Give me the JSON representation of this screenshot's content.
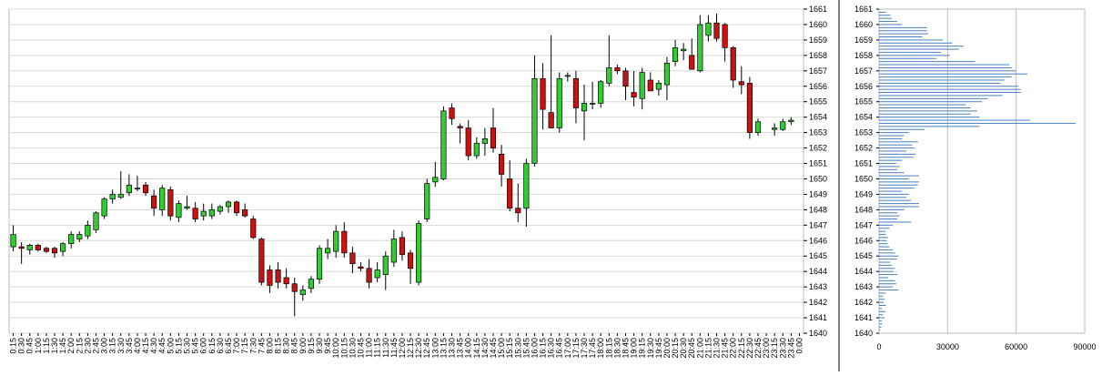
{
  "chart_data": [
    {
      "type": "candlestick",
      "title": "",
      "xlabel": "",
      "ylabel": "",
      "ylim": [
        1640,
        1661
      ],
      "y_ticks": [
        "1640",
        "1641",
        "1642",
        "1643",
        "1644",
        "1645",
        "1646",
        "1647",
        "1648",
        "1649",
        "1650",
        "1651",
        "1652",
        "1653",
        "1654",
        "1655",
        "1656",
        "1657",
        "1658",
        "1659",
        "1660",
        "1661"
      ],
      "x_ticks": [
        "0:15",
        "0:30",
        "0:45",
        "1:00",
        "1:15",
        "1:30",
        "1:45",
        "2:00",
        "2:15",
        "2:30",
        "2:45",
        "3:00",
        "3:15",
        "3:30",
        "3:45",
        "4:00",
        "4:15",
        "4:30",
        "4:45",
        "5:00",
        "5:15",
        "5:30",
        "5:45",
        "6:00",
        "6:15",
        "6:30",
        "6:45",
        "7:00",
        "7:15",
        "7:30",
        "7:45",
        "8:00",
        "8:15",
        "8:30",
        "8:45",
        "9:00",
        "9:15",
        "9:30",
        "9:45",
        "10:00",
        "10:15",
        "10:30",
        "10:45",
        "11:00",
        "11:15",
        "11:30",
        "11:45",
        "12:00",
        "12:15",
        "12:30",
        "12:45",
        "13:00",
        "13:15",
        "13:30",
        "13:45",
        "14:00",
        "14:15",
        "14:30",
        "14:45",
        "15:00",
        "15:15",
        "15:30",
        "15:45",
        "16:00",
        "16:15",
        "16:30",
        "16:45",
        "17:00",
        "17:15",
        "17:30",
        "17:45",
        "18:00",
        "18:15",
        "18:30",
        "18:45",
        "19:00",
        "19:15",
        "19:30",
        "19:45",
        "20:00",
        "20:15",
        "20:30",
        "20:45",
        "21:00",
        "21:15",
        "21:30",
        "21:45",
        "22:00",
        "22:15",
        "22:30",
        "22:45",
        "23:00",
        "23:15",
        "23:30",
        "23:45",
        "0:00"
      ],
      "grid": true,
      "colors": {
        "up": "#33cc33",
        "down": "#cc1111",
        "wick": "#000000",
        "volume": "#4a7fc1",
        "grid": "#d9d9d9"
      },
      "candles": [
        {
          "o": 1645.6,
          "h": 1647.0,
          "l": 1645.3,
          "c": 1646.4
        },
        {
          "o": 1645.6,
          "h": 1645.9,
          "l": 1644.5,
          "c": 1645.5
        },
        {
          "o": 1645.4,
          "h": 1645.8,
          "l": 1645.1,
          "c": 1645.7
        },
        {
          "o": 1645.7,
          "h": 1645.8,
          "l": 1645.3,
          "c": 1645.4
        },
        {
          "o": 1645.5,
          "h": 1645.6,
          "l": 1645.2,
          "c": 1645.3
        },
        {
          "o": 1645.5,
          "h": 1645.6,
          "l": 1644.9,
          "c": 1645.2
        },
        {
          "o": 1645.3,
          "h": 1645.9,
          "l": 1645.0,
          "c": 1645.8
        },
        {
          "o": 1645.8,
          "h": 1646.6,
          "l": 1645.5,
          "c": 1646.4
        },
        {
          "o": 1646.1,
          "h": 1646.6,
          "l": 1645.9,
          "c": 1646.4
        },
        {
          "o": 1646.3,
          "h": 1647.3,
          "l": 1646.1,
          "c": 1647.0
        },
        {
          "o": 1646.7,
          "h": 1647.9,
          "l": 1646.5,
          "c": 1647.8
        },
        {
          "o": 1647.6,
          "h": 1648.8,
          "l": 1647.4,
          "c": 1648.7
        },
        {
          "o": 1648.7,
          "h": 1649.3,
          "l": 1648.4,
          "c": 1649.0
        },
        {
          "o": 1648.8,
          "h": 1650.5,
          "l": 1648.7,
          "c": 1649.0
        },
        {
          "o": 1649.1,
          "h": 1650.3,
          "l": 1648.9,
          "c": 1649.6
        },
        {
          "o": 1649.4,
          "h": 1650.2,
          "l": 1649.2,
          "c": 1649.4
        },
        {
          "o": 1649.6,
          "h": 1649.8,
          "l": 1648.9,
          "c": 1649.1
        },
        {
          "o": 1648.9,
          "h": 1649.3,
          "l": 1647.6,
          "c": 1648.1
        },
        {
          "o": 1648.0,
          "h": 1649.6,
          "l": 1647.6,
          "c": 1649.4
        },
        {
          "o": 1649.3,
          "h": 1649.5,
          "l": 1647.3,
          "c": 1647.6
        },
        {
          "o": 1647.5,
          "h": 1648.6,
          "l": 1647.2,
          "c": 1648.4
        },
        {
          "o": 1648.1,
          "h": 1648.9,
          "l": 1648.0,
          "c": 1648.2
        },
        {
          "o": 1648.1,
          "h": 1648.5,
          "l": 1647.2,
          "c": 1647.4
        },
        {
          "o": 1647.6,
          "h": 1648.4,
          "l": 1647.3,
          "c": 1647.9
        },
        {
          "o": 1647.6,
          "h": 1648.4,
          "l": 1647.4,
          "c": 1648.0
        },
        {
          "o": 1647.9,
          "h": 1648.3,
          "l": 1647.7,
          "c": 1648.2
        },
        {
          "o": 1648.2,
          "h": 1648.6,
          "l": 1647.8,
          "c": 1648.5
        },
        {
          "o": 1648.5,
          "h": 1648.6,
          "l": 1647.6,
          "c": 1647.8
        },
        {
          "o": 1648.0,
          "h": 1648.4,
          "l": 1647.5,
          "c": 1647.6
        },
        {
          "o": 1647.4,
          "h": 1647.6,
          "l": 1646.1,
          "c": 1646.2
        },
        {
          "o": 1646.1,
          "h": 1646.2,
          "l": 1643.1,
          "c": 1643.3
        },
        {
          "o": 1644.1,
          "h": 1644.4,
          "l": 1642.6,
          "c": 1643.1
        },
        {
          "o": 1644.1,
          "h": 1644.6,
          "l": 1642.9,
          "c": 1643.3
        },
        {
          "o": 1643.6,
          "h": 1644.2,
          "l": 1642.9,
          "c": 1643.2
        },
        {
          "o": 1643.2,
          "h": 1643.6,
          "l": 1641.1,
          "c": 1642.7
        },
        {
          "o": 1642.5,
          "h": 1643.1,
          "l": 1642.1,
          "c": 1642.8
        },
        {
          "o": 1642.9,
          "h": 1643.7,
          "l": 1642.6,
          "c": 1643.5
        },
        {
          "o": 1643.5,
          "h": 1645.7,
          "l": 1643.2,
          "c": 1645.5
        },
        {
          "o": 1645.2,
          "h": 1646.1,
          "l": 1644.8,
          "c": 1645.5
        },
        {
          "o": 1645.3,
          "h": 1647.0,
          "l": 1644.9,
          "c": 1646.6
        },
        {
          "o": 1646.6,
          "h": 1647.2,
          "l": 1644.9,
          "c": 1645.2
        },
        {
          "o": 1645.2,
          "h": 1645.6,
          "l": 1643.9,
          "c": 1644.5
        },
        {
          "o": 1644.3,
          "h": 1644.6,
          "l": 1644.0,
          "c": 1644.2
        },
        {
          "o": 1644.2,
          "h": 1644.8,
          "l": 1642.9,
          "c": 1643.3
        },
        {
          "o": 1643.6,
          "h": 1644.6,
          "l": 1643.3,
          "c": 1644.1
        },
        {
          "o": 1643.8,
          "h": 1645.3,
          "l": 1642.8,
          "c": 1645.0
        },
        {
          "o": 1644.6,
          "h": 1646.7,
          "l": 1644.3,
          "c": 1646.1
        },
        {
          "o": 1646.2,
          "h": 1646.6,
          "l": 1644.7,
          "c": 1645.1
        },
        {
          "o": 1645.2,
          "h": 1645.4,
          "l": 1643.2,
          "c": 1644.2
        },
        {
          "o": 1643.3,
          "h": 1647.3,
          "l": 1643.1,
          "c": 1647.1
        },
        {
          "o": 1647.4,
          "h": 1650.0,
          "l": 1647.2,
          "c": 1649.7
        },
        {
          "o": 1649.8,
          "h": 1651.1,
          "l": 1649.5,
          "c": 1650.1
        },
        {
          "o": 1650.0,
          "h": 1654.7,
          "l": 1649.9,
          "c": 1654.4
        },
        {
          "o": 1654.6,
          "h": 1654.9,
          "l": 1653.5,
          "c": 1653.9
        },
        {
          "o": 1653.4,
          "h": 1653.6,
          "l": 1652.3,
          "c": 1653.3
        },
        {
          "o": 1653.3,
          "h": 1653.8,
          "l": 1651.2,
          "c": 1651.5
        },
        {
          "o": 1651.5,
          "h": 1652.7,
          "l": 1651.3,
          "c": 1652.3
        },
        {
          "o": 1652.3,
          "h": 1653.3,
          "l": 1651.5,
          "c": 1652.6
        },
        {
          "o": 1653.3,
          "h": 1654.6,
          "l": 1651.7,
          "c": 1652.0
        },
        {
          "o": 1651.6,
          "h": 1652.2,
          "l": 1649.5,
          "c": 1650.3
        },
        {
          "o": 1650.0,
          "h": 1651.2,
          "l": 1647.9,
          "c": 1648.1
        },
        {
          "o": 1648.1,
          "h": 1649.7,
          "l": 1647.2,
          "c": 1647.8
        },
        {
          "o": 1648.1,
          "h": 1651.3,
          "l": 1646.9,
          "c": 1651.0
        },
        {
          "o": 1651.0,
          "h": 1658.0,
          "l": 1650.8,
          "c": 1656.5
        },
        {
          "o": 1656.5,
          "h": 1657.5,
          "l": 1653.2,
          "c": 1654.5
        },
        {
          "o": 1654.3,
          "h": 1659.3,
          "l": 1653.3,
          "c": 1653.3
        },
        {
          "o": 1653.3,
          "h": 1656.9,
          "l": 1653.0,
          "c": 1656.5
        },
        {
          "o": 1656.7,
          "h": 1656.9,
          "l": 1656.3,
          "c": 1656.7
        },
        {
          "o": 1656.5,
          "h": 1657.0,
          "l": 1653.6,
          "c": 1654.6
        },
        {
          "o": 1654.4,
          "h": 1656.1,
          "l": 1652.5,
          "c": 1654.9
        },
        {
          "o": 1654.9,
          "h": 1656.3,
          "l": 1654.5,
          "c": 1654.9
        },
        {
          "o": 1654.9,
          "h": 1656.4,
          "l": 1654.6,
          "c": 1656.3
        },
        {
          "o": 1656.2,
          "h": 1659.3,
          "l": 1656.0,
          "c": 1657.2
        },
        {
          "o": 1657.2,
          "h": 1657.4,
          "l": 1656.8,
          "c": 1657.0
        },
        {
          "o": 1657.0,
          "h": 1657.2,
          "l": 1655.1,
          "c": 1656.0
        },
        {
          "o": 1655.6,
          "h": 1657.0,
          "l": 1654.7,
          "c": 1655.3
        },
        {
          "o": 1655.2,
          "h": 1657.2,
          "l": 1654.5,
          "c": 1656.9
        },
        {
          "o": 1656.4,
          "h": 1656.9,
          "l": 1655.7,
          "c": 1655.7
        },
        {
          "o": 1655.8,
          "h": 1656.4,
          "l": 1655.4,
          "c": 1656.2
        },
        {
          "o": 1656.1,
          "h": 1657.9,
          "l": 1655.1,
          "c": 1657.5
        },
        {
          "o": 1657.6,
          "h": 1659.0,
          "l": 1657.3,
          "c": 1658.5
        },
        {
          "o": 1658.3,
          "h": 1658.8,
          "l": 1657.7,
          "c": 1658.4
        },
        {
          "o": 1658.0,
          "h": 1659.1,
          "l": 1657.1,
          "c": 1657.1
        },
        {
          "o": 1657.0,
          "h": 1660.6,
          "l": 1656.9,
          "c": 1660.0
        },
        {
          "o": 1659.3,
          "h": 1660.6,
          "l": 1658.9,
          "c": 1660.1
        },
        {
          "o": 1660.1,
          "h": 1660.7,
          "l": 1658.9,
          "c": 1659.1
        },
        {
          "o": 1660.0,
          "h": 1660.1,
          "l": 1657.6,
          "c": 1658.5
        },
        {
          "o": 1658.5,
          "h": 1658.6,
          "l": 1655.9,
          "c": 1656.4
        },
        {
          "o": 1656.3,
          "h": 1657.3,
          "l": 1655.5,
          "c": 1656.1
        },
        {
          "o": 1656.2,
          "h": 1656.6,
          "l": 1652.6,
          "c": 1653.0
        },
        {
          "o": 1653.0,
          "h": 1653.9,
          "l": 1652.8,
          "c": 1653.7
        },
        null,
        {
          "o": 1653.2,
          "h": 1653.6,
          "l": 1652.8,
          "c": 1653.3
        },
        {
          "o": 1653.2,
          "h": 1653.9,
          "l": 1653.1,
          "c": 1653.7
        },
        {
          "o": 1653.7,
          "h": 1654.0,
          "l": 1653.5,
          "c": 1653.8
        }
      ],
      "volume": [
        0,
        0,
        0,
        0,
        0,
        0,
        0,
        0,
        0,
        0,
        0,
        0,
        0,
        0,
        0,
        0,
        0,
        0,
        0,
        0,
        0,
        0,
        0,
        0,
        0,
        0,
        0,
        0,
        0,
        0,
        0,
        0,
        0,
        0,
        0,
        0,
        0,
        0,
        0,
        0,
        0,
        0,
        0,
        0,
        0,
        0,
        0,
        0,
        0,
        0,
        0,
        0,
        0,
        0,
        0,
        0,
        0,
        0,
        0,
        0,
        0,
        0,
        0,
        0,
        0,
        0,
        0,
        0,
        0,
        0,
        0,
        0,
        0,
        0,
        0,
        0,
        0,
        0,
        0,
        0,
        0,
        0,
        0,
        0,
        0,
        0,
        0,
        0,
        0,
        0,
        0,
        0,
        0,
        0,
        0,
        0
      ],
      "volume_ylim": [
        0,
        100
      ]
    },
    {
      "type": "bar",
      "orientation": "horizontal",
      "title": "",
      "xlabel": "",
      "ylabel": "",
      "x_ticks": [
        "0",
        "30000",
        "60000",
        "90000"
      ],
      "xlim": [
        0,
        90000
      ],
      "y_ticks": [
        "1640",
        "1641",
        "1642",
        "1643",
        "1644",
        "1645",
        "1646",
        "1647",
        "1648",
        "1649",
        "1650",
        "1651",
        "1652",
        "1653",
        "1654",
        "1655",
        "1656",
        "1657",
        "1658",
        "1659",
        "1660",
        "1661"
      ],
      "ylim": [
        1640,
        1661
      ],
      "bar_color": "#4a7fc1",
      "categories": [
        1640.0,
        1640.2,
        1640.4,
        1640.6,
        1640.8,
        1641.0,
        1641.2,
        1641.4,
        1641.6,
        1641.8,
        1642.0,
        1642.2,
        1642.4,
        1642.6,
        1642.8,
        1643.0,
        1643.2,
        1643.4,
        1643.6,
        1643.8,
        1644.0,
        1644.2,
        1644.4,
        1644.6,
        1644.8,
        1645.0,
        1645.2,
        1645.4,
        1645.6,
        1645.8,
        1646.0,
        1646.2,
        1646.4,
        1646.6,
        1646.8,
        1647.0,
        1647.2,
        1647.4,
        1647.6,
        1647.8,
        1648.0,
        1648.2,
        1648.4,
        1648.6,
        1648.8,
        1649.0,
        1649.2,
        1649.4,
        1649.6,
        1649.8,
        1650.0,
        1650.2,
        1650.4,
        1650.6,
        1650.8,
        1651.0,
        1651.2,
        1651.4,
        1651.6,
        1651.8,
        1652.0,
        1652.2,
        1652.4,
        1652.6,
        1652.8,
        1653.0,
        1653.2,
        1653.4,
        1653.6,
        1653.8,
        1654.0,
        1654.2,
        1654.4,
        1654.6,
        1654.8,
        1655.0,
        1655.2,
        1655.4,
        1655.6,
        1655.8,
        1656.0,
        1656.2,
        1656.4,
        1656.6,
        1656.8,
        1657.0,
        1657.2,
        1657.4,
        1657.6,
        1657.8,
        1658.0,
        1658.2,
        1658.4,
        1658.6,
        1658.8,
        1659.0,
        1659.2,
        1659.4,
        1659.6,
        1659.8,
        1660.0,
        1660.2,
        1660.4,
        1660.6,
        1660.8
      ],
      "values": [
        0,
        500,
        1000,
        1500,
        1200,
        2500,
        1800,
        2800,
        1200,
        3000,
        2000,
        2500,
        1800,
        2800,
        8500,
        6000,
        7500,
        7000,
        4000,
        8000,
        6500,
        7000,
        5500,
        4800,
        7800,
        8500,
        7000,
        6000,
        4500,
        3800,
        3500,
        4000,
        3000,
        2800,
        4500,
        6000,
        14000,
        8000,
        9000,
        8000,
        11000,
        17500,
        17500,
        14000,
        12000,
        13000,
        10000,
        15500,
        17000,
        17500,
        13000,
        17500,
        11000,
        8000,
        9000,
        7500,
        10000,
        15000,
        16000,
        12000,
        15500,
        14500,
        17000,
        10000,
        11000,
        13000,
        20000,
        44000,
        86000,
        66000,
        44000,
        40000,
        43000,
        40000,
        38000,
        45000,
        47500,
        54000,
        62000,
        62000,
        61000,
        53000,
        55000,
        58000,
        65000,
        60000,
        58000,
        57000,
        42000,
        25000,
        31000,
        27000,
        35000,
        37000,
        32000,
        28000,
        19000,
        21500,
        21000,
        21000,
        10000,
        8000,
        5500,
        5000,
        3000
      ]
    }
  ]
}
